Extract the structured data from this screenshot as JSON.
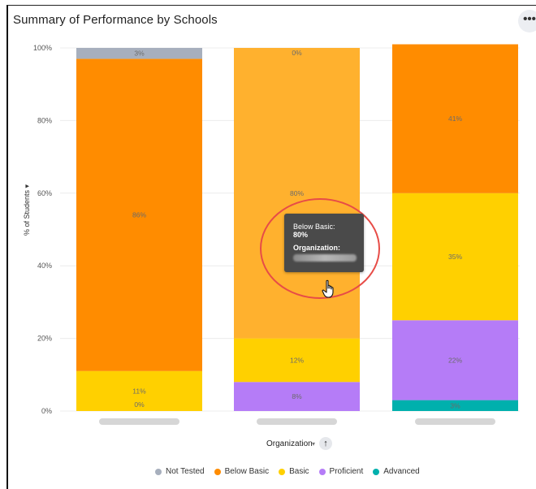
{
  "header": {
    "title": "Summary of Performance by Schools",
    "more_label": "•••"
  },
  "axis": {
    "ylabel": "% of Students",
    "ylabel_caret": "▾",
    "xlabel": "Organization",
    "xlabel_caret": "▾",
    "sort_icon": "↑"
  },
  "chart_data": {
    "type": "bar",
    "stacked": true,
    "categories": [
      "",
      "",
      ""
    ],
    "ylim": [
      0,
      100
    ],
    "yticks": [
      "0%",
      "20%",
      "40%",
      "60%",
      "80%",
      "100%"
    ],
    "grid": true,
    "legend_position": "bottom",
    "series": [
      {
        "name": "Not Tested",
        "color": "#a7afbd",
        "values": [
          3,
          0,
          null
        ],
        "labels": [
          "3%",
          "0%",
          ""
        ]
      },
      {
        "name": "Below Basic",
        "color": "#ff8c00",
        "hover_color": "#ffb12e",
        "values": [
          86,
          80,
          41
        ],
        "labels": [
          "86%",
          "80%",
          "41%"
        ]
      },
      {
        "name": "Basic",
        "color": "#ffd000",
        "values": [
          11,
          12,
          35
        ],
        "labels": [
          "11%",
          "12%",
          "35%"
        ]
      },
      {
        "name": "Proficient",
        "color": "#b57cf7",
        "values": [
          0,
          8,
          22
        ],
        "labels": [
          "0%",
          "8%",
          "22%"
        ]
      },
      {
        "name": "Advanced",
        "color": "#00b0ad",
        "values": [
          null,
          null,
          3
        ],
        "labels": [
          "",
          "",
          "3%"
        ]
      }
    ]
  },
  "tooltip": {
    "series_label": "Below Basic:",
    "value": "80%",
    "org_label": "Organization:"
  },
  "cursor": {
    "icon": "hand-pointer-icon"
  }
}
